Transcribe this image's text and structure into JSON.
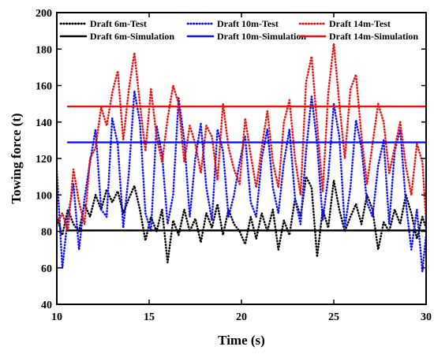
{
  "chart_data": {
    "type": "line",
    "title": "",
    "xlabel": "Time (s)",
    "ylabel": "Towing force (t)",
    "xlim": [
      10,
      30
    ],
    "ylim": [
      40,
      200
    ],
    "xticks": [
      10,
      15,
      20,
      25,
      30
    ],
    "yticks": [
      40,
      60,
      80,
      100,
      120,
      140,
      160,
      180,
      200
    ],
    "grid": false,
    "legend_position": "top",
    "series": [
      {
        "name": "Draft 6m-Test",
        "style": "dotted",
        "color": "#000000",
        "x": [
          10.0,
          10.3,
          10.6,
          10.9,
          11.2,
          11.5,
          11.8,
          12.1,
          12.4,
          12.7,
          13.0,
          13.3,
          13.6,
          13.9,
          14.2,
          14.5,
          14.8,
          15.1,
          15.4,
          15.7,
          16.0,
          16.3,
          16.6,
          16.9,
          17.2,
          17.5,
          17.8,
          18.1,
          18.4,
          18.7,
          19.0,
          19.3,
          19.6,
          19.9,
          20.2,
          20.5,
          20.8,
          21.1,
          21.4,
          21.7,
          22.0,
          22.3,
          22.6,
          22.9,
          23.2,
          23.5,
          23.8,
          24.1,
          24.4,
          24.7,
          25.0,
          25.3,
          25.6,
          25.9,
          26.2,
          26.5,
          26.8,
          27.1,
          27.4,
          27.7,
          28.0,
          28.3,
          28.6,
          28.9,
          29.2,
          29.5,
          29.8,
          30.0
        ],
        "values": [
          88,
          78,
          92,
          84,
          80,
          95,
          88,
          100,
          92,
          103,
          96,
          102,
          90,
          98,
          105,
          92,
          75,
          88,
          80,
          92,
          63,
          86,
          78,
          92,
          80,
          87,
          74,
          90,
          82,
          95,
          78,
          92,
          84,
          80,
          73,
          88,
          76,
          90,
          80,
          92,
          70,
          86,
          78,
          98,
          88,
          110,
          104,
          66,
          92,
          82,
          108,
          92,
          80,
          88,
          95,
          84,
          100,
          92,
          70,
          85,
          80,
          92,
          84,
          100,
          90,
          76,
          88,
          82
        ]
      },
      {
        "name": "Draft 10m-Test",
        "style": "dotted",
        "color": "#1010ff",
        "x": [
          10.0,
          10.3,
          10.6,
          10.9,
          11.2,
          11.5,
          11.8,
          12.1,
          12.4,
          12.7,
          13.0,
          13.3,
          13.6,
          13.9,
          14.2,
          14.5,
          14.8,
          15.1,
          15.4,
          15.7,
          16.0,
          16.3,
          16.6,
          16.9,
          17.2,
          17.5,
          17.8,
          18.1,
          18.4,
          18.7,
          19.0,
          19.3,
          19.6,
          19.9,
          20.2,
          20.5,
          20.8,
          21.1,
          21.4,
          21.7,
          22.0,
          22.3,
          22.6,
          22.9,
          23.2,
          23.5,
          23.8,
          24.1,
          24.4,
          24.7,
          25.0,
          25.3,
          25.6,
          25.9,
          26.2,
          26.5,
          26.8,
          27.1,
          27.4,
          27.7,
          28.0,
          28.3,
          28.6,
          28.9,
          29.2,
          29.5,
          29.8,
          30.0
        ],
        "values": [
          113,
          60,
          88,
          106,
          70,
          98,
          118,
          136,
          92,
          88,
          142,
          128,
          82,
          112,
          157,
          140,
          90,
          80,
          138,
          122,
          84,
          100,
          153,
          130,
          88,
          120,
          139,
          104,
          86,
          136,
          124,
          88,
          100,
          118,
          132,
          96,
          88,
          120,
          136,
          104,
          90,
          118,
          136,
          98,
          84,
          124,
          154,
          128,
          86,
          110,
          150,
          132,
          82,
          104,
          141,
          126,
          96,
          88,
          116,
          130,
          84,
          124,
          136,
          96,
          70,
          92,
          58,
          78
        ]
      },
      {
        "name": "Draft 14m-Test",
        "style": "dotted",
        "color": "#ee1010",
        "x": [
          10.0,
          10.3,
          10.6,
          10.9,
          11.2,
          11.5,
          11.8,
          12.1,
          12.4,
          12.7,
          13.0,
          13.3,
          13.6,
          13.9,
          14.2,
          14.5,
          14.8,
          15.1,
          15.4,
          15.7,
          16.0,
          16.3,
          16.6,
          16.9,
          17.2,
          17.5,
          17.8,
          18.1,
          18.4,
          18.7,
          19.0,
          19.3,
          19.6,
          19.9,
          20.2,
          20.5,
          20.8,
          21.1,
          21.4,
          21.7,
          22.0,
          22.3,
          22.6,
          22.9,
          23.2,
          23.5,
          23.8,
          24.1,
          24.4,
          24.7,
          25.0,
          25.3,
          25.6,
          25.9,
          26.2,
          26.5,
          26.8,
          27.1,
          27.4,
          27.7,
          28.0,
          28.3,
          28.6,
          28.9,
          29.2,
          29.5,
          29.8,
          30.0
        ],
        "values": [
          84,
          90,
          80,
          114,
          96,
          84,
          120,
          126,
          148,
          138,
          156,
          168,
          130,
          158,
          178,
          150,
          124,
          158,
          132,
          118,
          142,
          160,
          150,
          118,
          138,
          128,
          112,
          138,
          132,
          108,
          150,
          126,
          114,
          106,
          142,
          122,
          104,
          126,
          146,
          118,
          104,
          140,
          152,
          120,
          100,
          162,
          176,
          138,
          102,
          156,
          183,
          150,
          120,
          158,
          166,
          132,
          106,
          128,
          150,
          140,
          112,
          126,
          140,
          116,
          100,
          128,
          118,
          86
        ]
      },
      {
        "name": "Draft 6m-Simulation",
        "style": "solid",
        "color": "#000000",
        "x": [
          10.6,
          30.0
        ],
        "values": [
          80.5,
          80.5
        ]
      },
      {
        "name": "Draft 10m-Simulation",
        "style": "solid",
        "color": "#1010ff",
        "x": [
          10.6,
          30.0
        ],
        "values": [
          128.8,
          128.8
        ]
      },
      {
        "name": "Draft 14m-Simulation",
        "style": "solid",
        "color": "#ee1010",
        "x": [
          10.6,
          30.0
        ],
        "values": [
          148.5,
          148.5
        ]
      }
    ]
  }
}
